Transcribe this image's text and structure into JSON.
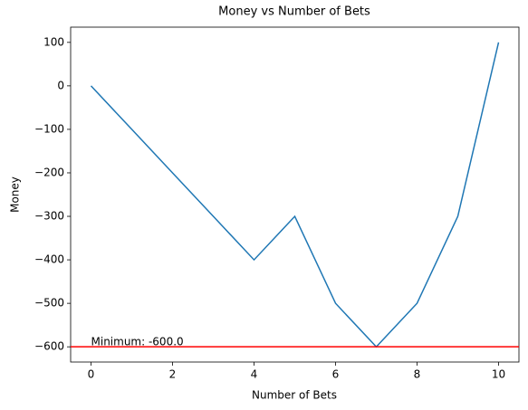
{
  "chart_data": {
    "type": "line",
    "title": "Money vs Number of Bets",
    "x_label": "Number of Bets",
    "y_label": "Money",
    "x": [
      0,
      1,
      2,
      3,
      4,
      5,
      6,
      7,
      8,
      9,
      10
    ],
    "series": [
      {
        "name": "Money",
        "color": "#1f77b4",
        "values": [
          0,
          -100,
          -200,
          -300,
          -400,
          -300,
          -500,
          -600,
          -500,
          -300,
          100
        ]
      }
    ],
    "hline": {
      "value": -600,
      "color": "#ff0000"
    },
    "annotation": "Minimum: -600.0",
    "xlim": [
      -0.5,
      10.5
    ],
    "xticks": [
      0,
      2,
      4,
      6,
      8,
      10
    ],
    "ylim": [
      -635,
      135
    ],
    "yticks": [
      {
        "value": -600,
        "label": "−600"
      },
      {
        "value": -500,
        "label": "−500"
      },
      {
        "value": -400,
        "label": "−400"
      },
      {
        "value": -300,
        "label": "−300"
      },
      {
        "value": -200,
        "label": "−200"
      },
      {
        "value": -100,
        "label": "−100"
      },
      0,
      100
    ],
    "grid": false
  }
}
